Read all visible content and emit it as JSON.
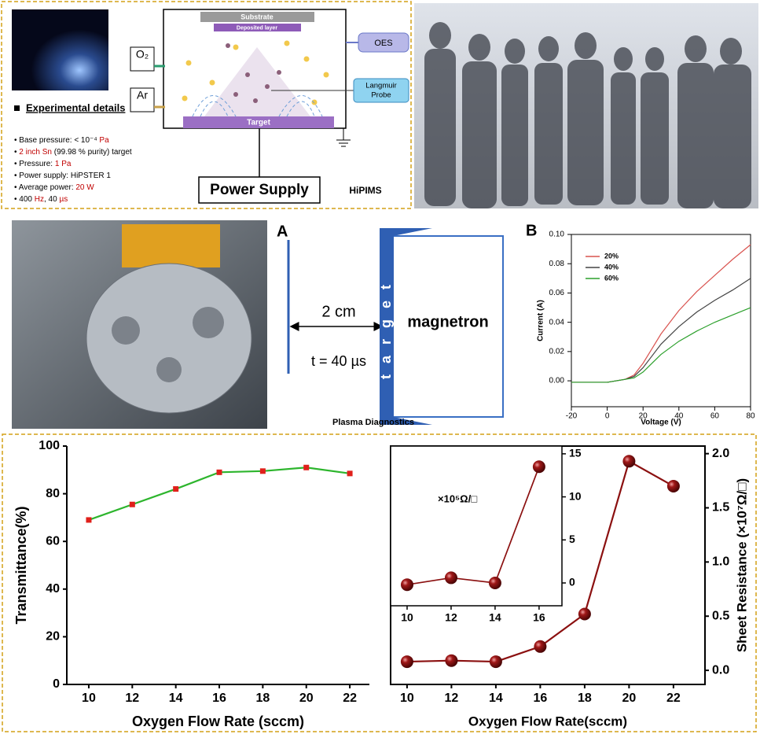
{
  "schematic": {
    "title": "Experimental details",
    "items": [
      [
        {
          "text": "Base pressure: < 10⁻⁴ "
        },
        {
          "text": "Pa",
          "color": "#c00000"
        }
      ],
      [
        {
          "text": "2 inch Sn",
          "color": "#c00000"
        },
        {
          "text": " (99.98 % purity) target"
        }
      ],
      [
        {
          "text": "Pressure: "
        },
        {
          "text": "1 Pa",
          "color": "#c00000"
        }
      ],
      [
        {
          "text": "Power supply: HiPSTER 1"
        }
      ],
      [
        {
          "text": "Average power: "
        },
        {
          "text": "20 W",
          "color": "#c00000"
        }
      ],
      [
        {
          "text": "400 "
        },
        {
          "text": "Hz",
          "color": "#c00000"
        },
        {
          "text": ", 40 "
        },
        {
          "text": "µs",
          "color": "#c00000"
        }
      ]
    ],
    "labels": {
      "substrate": "Substrate",
      "deposited_layer": "Deposited layer",
      "oes": "OES",
      "langmuir_probe": [
        "Langmuir",
        "Probe"
      ],
      "target": "Target",
      "o2": "O₂",
      "ar": "Ar",
      "power_supply": "Power Supply",
      "hipims": "HiPIMS"
    }
  },
  "diagnostics": {
    "panel": "A",
    "distance": "2 cm",
    "pulse": "t = 40 µs",
    "target": "target",
    "magnetron": "magnetron",
    "caption": "Plasma Diagnostics"
  },
  "chart_data": [
    {
      "type": "line",
      "panel_label": "B",
      "xlabel": "Voltage (V)",
      "ylabel": "Current (A)",
      "x": [
        -20,
        -10,
        0,
        10,
        15,
        20,
        25,
        30,
        40,
        50,
        60,
        70,
        80
      ],
      "series": [
        {
          "name": "20%",
          "color": "#d9534f",
          "values": [
            -0.001,
            -0.001,
            -0.001,
            0.001,
            0.004,
            0.012,
            0.022,
            0.032,
            0.048,
            0.061,
            0.072,
            0.083,
            0.093
          ]
        },
        {
          "name": "40%",
          "color": "#444444",
          "values": [
            -0.001,
            -0.001,
            -0.001,
            0.001,
            0.003,
            0.009,
            0.017,
            0.025,
            0.037,
            0.047,
            0.055,
            0.062,
            0.07
          ]
        },
        {
          "name": "60%",
          "color": "#2ca02c",
          "values": [
            -0.001,
            -0.001,
            -0.001,
            0.001,
            0.002,
            0.006,
            0.012,
            0.018,
            0.027,
            0.034,
            0.04,
            0.045,
            0.05
          ]
        }
      ],
      "xlim": [
        -20,
        80
      ],
      "ylim": [
        -0.0177,
        0.1
      ],
      "xticks": [
        -20,
        0,
        20,
        40,
        60,
        80
      ],
      "yticks": [
        {
          "value": 0,
          "label": "0.00"
        },
        {
          "value": 0.02,
          "label": "0.02"
        },
        {
          "value": 0.04,
          "label": "0.04"
        },
        {
          "value": 0.06,
          "label": "0.06"
        },
        {
          "value": 0.08,
          "label": "0.08"
        },
        {
          "value": 0.1,
          "label": "0.10"
        }
      ],
      "legend": "upper left"
    },
    {
      "type": "line",
      "xlabel": "Oxygen Flow Rate (sccm)",
      "ylabel": "Transmittance(%)",
      "x": [
        10,
        12,
        14,
        16,
        18,
        20,
        22
      ],
      "values": [
        69,
        75.5,
        82,
        89,
        89.5,
        91,
        88.5
      ],
      "color": "#2db52d",
      "marker": "square",
      "marker_color": "#e0201b",
      "xlim": [
        8.99,
        22.9
      ],
      "ylim": [
        0,
        100
      ],
      "xticks": [
        10,
        12,
        14,
        16,
        18,
        20,
        22
      ],
      "yticks": [
        0,
        20,
        40,
        60,
        80,
        100
      ]
    },
    {
      "type": "line",
      "xlabel": "Oxygen Flow Rate(sccm)",
      "ylabel": "Sheet Resistance (×10⁷Ω/□)",
      "x": [
        10,
        12,
        14,
        16,
        18,
        20,
        22
      ],
      "values": [
        0.08,
        0.09,
        0.08,
        0.22,
        0.52,
        1.93,
        1.7
      ],
      "color": "#8b1010",
      "marker": "sphere",
      "marker_color": "#8b1010",
      "xlim": [
        9.26,
        23.42
      ],
      "ylim": [
        -0.13,
        2.07
      ],
      "xticks": [
        10,
        12,
        14,
        16,
        18,
        20,
        22
      ],
      "yticks": [
        {
          "value": 0,
          "label": "0.0"
        },
        0.5,
        {
          "value": 1,
          "label": "1.0"
        },
        1.5,
        {
          "value": 2,
          "label": "2.0"
        }
      ]
    },
    {
      "type": "line",
      "annotation": "×10⁵Ω/□",
      "x": [
        10,
        12,
        14,
        16
      ],
      "values": [
        -0.2,
        0.6,
        0.0,
        13.5
      ],
      "color": "#8b1010",
      "marker": "sphere",
      "marker_color": "#8b1010",
      "xlim": [
        9.25,
        17.04
      ],
      "ylim": [
        -2.65,
        15.9
      ],
      "xticks": [
        10,
        12,
        14,
        16
      ],
      "yticks": [
        0,
        5,
        10,
        15
      ]
    }
  ]
}
